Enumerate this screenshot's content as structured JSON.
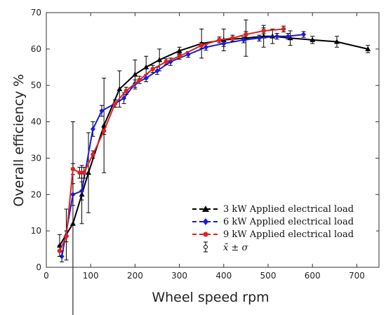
{
  "chart_data": {
    "type": "line",
    "xlabel": "Wheel speed rpm",
    "ylabel": "Overall efficiency %",
    "xlim": [
      0,
      750
    ],
    "ylim": [
      0,
      70
    ],
    "xticks": [
      0,
      100,
      200,
      300,
      400,
      500,
      600,
      700
    ],
    "yticks": [
      0,
      10,
      20,
      30,
      40,
      50,
      60,
      70
    ],
    "grid": false,
    "legend_position": "bottom-right",
    "series": [
      {
        "name": "3 kW Applied electrical load",
        "color": "#000000",
        "marker": "triangle",
        "x": [
          30,
          45,
          60,
          80,
          95,
          130,
          165,
          200,
          225,
          255,
          300,
          350,
          400,
          450,
          490,
          510,
          550,
          600,
          655,
          725
        ],
        "y": [
          6,
          9,
          12,
          20,
          26,
          39,
          49,
          53,
          55,
          57,
          59.5,
          61.5,
          62.5,
          63,
          63.5,
          63.5,
          63,
          62.5,
          62,
          60
        ],
        "err": [
          3,
          7,
          28,
          8,
          11,
          13,
          5,
          4,
          3,
          3,
          1,
          4,
          3,
          5,
          3,
          2,
          2,
          1,
          1.5,
          1
        ]
      },
      {
        "name": "6 kW Applied electrical load",
        "color": "#1b1bd8",
        "marker": "diamond",
        "x": [
          35,
          60,
          80,
          105,
          125,
          155,
          175,
          200,
          225,
          250,
          280,
          320,
          360,
          400,
          445,
          480,
          520,
          545,
          580
        ],
        "y": [
          3,
          20,
          21,
          38,
          43,
          45,
          46.5,
          50.5,
          52,
          54,
          56.5,
          58.5,
          60.5,
          61.5,
          62.5,
          63,
          63.5,
          63.5,
          64
        ],
        "err": [
          1.5,
          3,
          2.5,
          2,
          1.5,
          1,
          1.5,
          1,
          1,
          1,
          1,
          0.8,
          0.8,
          0.8,
          0.8,
          0.8,
          0.8,
          0.8,
          0.8
        ]
      },
      {
        "name": "9 kW Applied electrical load",
        "color": "#e02020",
        "marker": "circle",
        "x": [
          30,
          45,
          60,
          75,
          85,
          105,
          130,
          155,
          180,
          210,
          240,
          270,
          300,
          350,
          390,
          420,
          450,
          490,
          535
        ],
        "y": [
          4.5,
          8.5,
          27,
          26,
          26,
          31,
          37.5,
          45,
          48.5,
          51.5,
          54.5,
          56.5,
          58,
          61,
          62.5,
          63,
          64,
          65,
          65.5
        ],
        "err": [
          1.5,
          1.5,
          1.5,
          1.5,
          1.5,
          1,
          1,
          1,
          1,
          1,
          1,
          0.8,
          0.8,
          0.8,
          0.8,
          0.8,
          0.8,
          0.8,
          0.8
        ]
      }
    ],
    "errorbar_legend": "x̄ ± σ"
  }
}
